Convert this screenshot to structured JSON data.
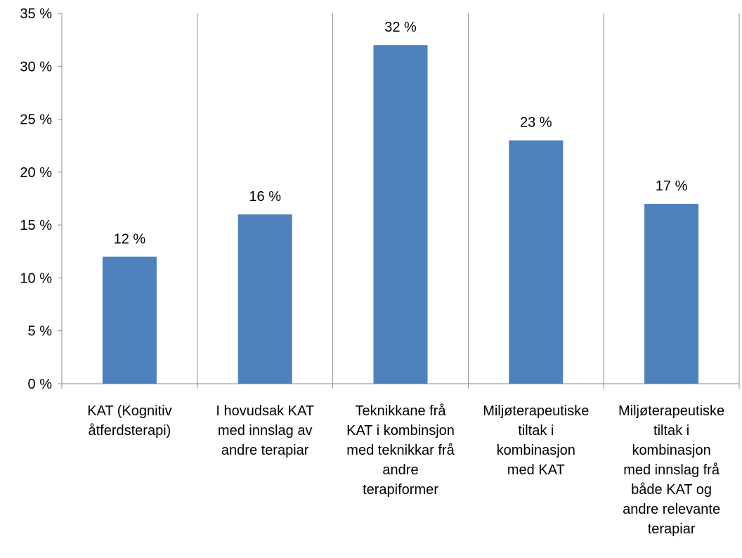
{
  "chart_data": {
    "type": "bar",
    "title": "",
    "xlabel": "",
    "ylabel": "",
    "categories": [
      [
        "KAT (Kognitiv",
        "åtferdsterapi)"
      ],
      [
        "I hovudsak KAT",
        "med innslag av",
        "andre terapiar"
      ],
      [
        "Teknikkane frå",
        "KAT i kombinsjon",
        "med teknikkar frå",
        "andre",
        "terapiformer"
      ],
      [
        "Miljøterapeutiske",
        "tiltak i",
        "kombinasjon",
        "med  KAT"
      ],
      [
        "Miljøterapeutiske",
        "tiltak i",
        "kombinasjon",
        "med innslag frå",
        "både KAT og",
        "andre relevante",
        "terapiar"
      ]
    ],
    "values": [
      12,
      16,
      32,
      23,
      17
    ],
    "data_labels": [
      "12 %",
      "16 %",
      "32 %",
      "23 %",
      "17 %"
    ],
    "ylim": [
      0,
      35
    ],
    "yticks": [
      0,
      5,
      10,
      15,
      20,
      25,
      30,
      35
    ],
    "ytick_labels": [
      "0 %",
      "5 %",
      "10 %",
      "15 %",
      "20 %",
      "25 %",
      "30 %",
      "35 %"
    ],
    "grid": "vertical",
    "legend": "none",
    "colors": {
      "bar": "#4f81bd",
      "grid": "#8c8c8c",
      "axis": "#8c8c8c"
    }
  }
}
